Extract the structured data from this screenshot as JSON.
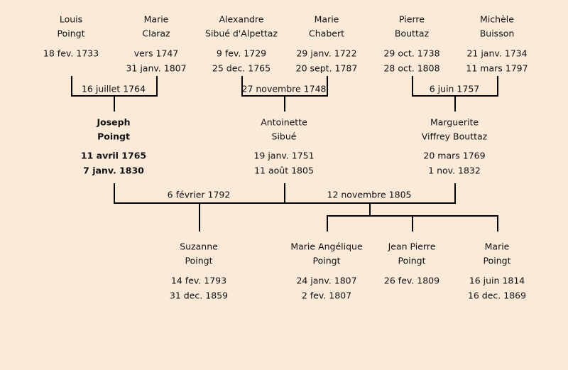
{
  "people": {
    "louis": {
      "first": "Louis",
      "last": "Poingt",
      "birth": "18 fev. 1733",
      "death": ""
    },
    "marie_claraz": {
      "first": "Marie",
      "last": "Claraz",
      "birth": "vers 1747",
      "death": "31 janv. 1807"
    },
    "alexandre": {
      "first": "Alexandre",
      "last": "Sibué d'Alpettaz",
      "birth": "9 fev. 1729",
      "death": "25 dec. 1765"
    },
    "marie_chabert": {
      "first": "Marie",
      "last": "Chabert",
      "birth": "29 janv. 1722",
      "death": "20 sept. 1787"
    },
    "pierre": {
      "first": "Pierre",
      "last": "Bouttaz",
      "birth": "29 oct. 1738",
      "death": "28 oct. 1808"
    },
    "michele": {
      "first": "Michèle",
      "last": "Buisson",
      "birth": "21 janv. 1734",
      "death": "11 mars 1797"
    },
    "joseph": {
      "first": "Joseph",
      "last": "Poingt",
      "birth": "11 avril 1765",
      "death": "7 janv. 1830"
    },
    "antoinette": {
      "first": "Antoinette",
      "last": "Sibué",
      "birth": "19 janv. 1751",
      "death": "11 août 1805"
    },
    "marguerite": {
      "first": "Marguerite",
      "last": "Viffrey Bouttaz",
      "birth": "20 mars 1769",
      "death": "1 nov. 1832"
    },
    "suzanne": {
      "first": "Suzanne",
      "last": "Poingt",
      "birth": "14 fev. 1793",
      "death": "31 dec. 1859"
    },
    "marie_angelique": {
      "first": "Marie Angélique",
      "last": "Poingt",
      "birth": "24 janv. 1807",
      "death": "2 fev. 1807"
    },
    "jean_pierre": {
      "first": "Jean Pierre",
      "last": "Poingt",
      "birth": "26 fev. 1809",
      "death": ""
    },
    "marie_poingt": {
      "first": "Marie",
      "last": "Poingt",
      "birth": "16 juin 1814",
      "death": "16 dec. 1869"
    }
  },
  "marriages": {
    "louis_marie": "16 juillet 1764",
    "alexandre_marie": "27 novembre 1748",
    "pierre_michele": "6 juin 1757",
    "joseph_antoinette": "6 février 1792",
    "joseph_marguerite": "12 novembre 1805"
  },
  "colors": {
    "background": "#fbead8",
    "lines": "#000000"
  }
}
